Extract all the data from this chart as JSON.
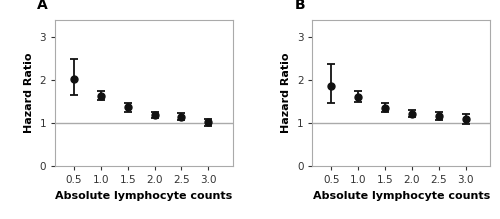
{
  "panel_A": {
    "label": "A",
    "x": [
      0.5,
      1.0,
      1.5,
      2.0,
      2.5,
      3.0
    ],
    "y": [
      2.02,
      1.63,
      1.37,
      1.2,
      1.15,
      1.03
    ],
    "y_upper": [
      2.48,
      1.75,
      1.48,
      1.27,
      1.23,
      1.1
    ],
    "y_lower": [
      1.65,
      1.53,
      1.27,
      1.13,
      1.08,
      0.93
    ],
    "xlabel": "Absolute lymphocyte counts",
    "ylabel": "Hazard Ratio"
  },
  "panel_B": {
    "label": "B",
    "x": [
      0.5,
      1.0,
      1.5,
      2.0,
      2.5,
      3.0
    ],
    "y": [
      1.87,
      1.62,
      1.36,
      1.22,
      1.18,
      1.1
    ],
    "y_upper": [
      2.38,
      1.75,
      1.47,
      1.3,
      1.27,
      1.22
    ],
    "y_lower": [
      1.48,
      1.5,
      1.26,
      1.15,
      1.08,
      0.98
    ],
    "xlabel": "Absolute lymphocyte counts",
    "ylabel": "Hazard Ratio"
  },
  "ylim": [
    0,
    3.4
  ],
  "yticks": [
    0,
    1,
    2,
    3
  ],
  "xticks": [
    0.5,
    1.0,
    1.5,
    2.0,
    2.5,
    3.0
  ],
  "xlim": [
    0.15,
    3.45
  ],
  "ref_line_y": 1.0,
  "ref_line_color": "#aaaaaa",
  "spine_color": "#aaaaaa",
  "marker_color": "#111111",
  "marker_size": 5,
  "cap_size": 3,
  "elinewidth": 1.3,
  "capthick": 1.3,
  "background_color": "#ffffff",
  "label_fontsize": 8,
  "tick_fontsize": 7.5,
  "panel_label_fontsize": 10
}
